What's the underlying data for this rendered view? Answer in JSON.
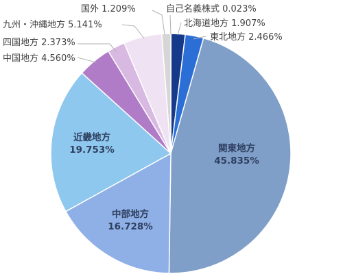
{
  "chart_data": {
    "type": "pie",
    "start_angle_deg": 0,
    "direction": "clockwise",
    "slices": [
      {
        "label": "自己名義株式",
        "value": 0.023,
        "value_text": "0.023%",
        "color": "#1f3f7f",
        "label_place": "outside"
      },
      {
        "label": "北海道地方",
        "value": 1.907,
        "value_text": "1.907%",
        "color": "#17398a",
        "label_place": "outside"
      },
      {
        "label": "東北地方",
        "value": 2.466,
        "value_text": "2.466%",
        "color": "#2b6fd6",
        "label_place": "outside"
      },
      {
        "label": "関東地方",
        "value": 45.835,
        "value_text": "45.835%",
        "color": "#7f9fc8",
        "label_place": "inside"
      },
      {
        "label": "中部地方",
        "value": 16.728,
        "value_text": "16.728%",
        "color": "#8fb0e6",
        "label_place": "inside"
      },
      {
        "label": "近畿地方",
        "value": 19.753,
        "value_text": "19.753%",
        "color": "#8ec8ee",
        "label_place": "inside"
      },
      {
        "label": "中国地方",
        "value": 4.56,
        "value_text": "4.560%",
        "color": "#b07cc8",
        "label_place": "outside"
      },
      {
        "label": "四国地方",
        "value": 2.373,
        "value_text": "2.373%",
        "color": "#d7b9e2",
        "label_place": "outside"
      },
      {
        "label": "九州・沖縄地方",
        "value": 5.141,
        "value_text": "5.141%",
        "color": "#efe3f3",
        "label_place": "outside"
      },
      {
        "label": "国外",
        "value": 1.209,
        "value_text": "1.209%",
        "color": "#d6d6d6",
        "label_place": "outside"
      }
    ]
  }
}
